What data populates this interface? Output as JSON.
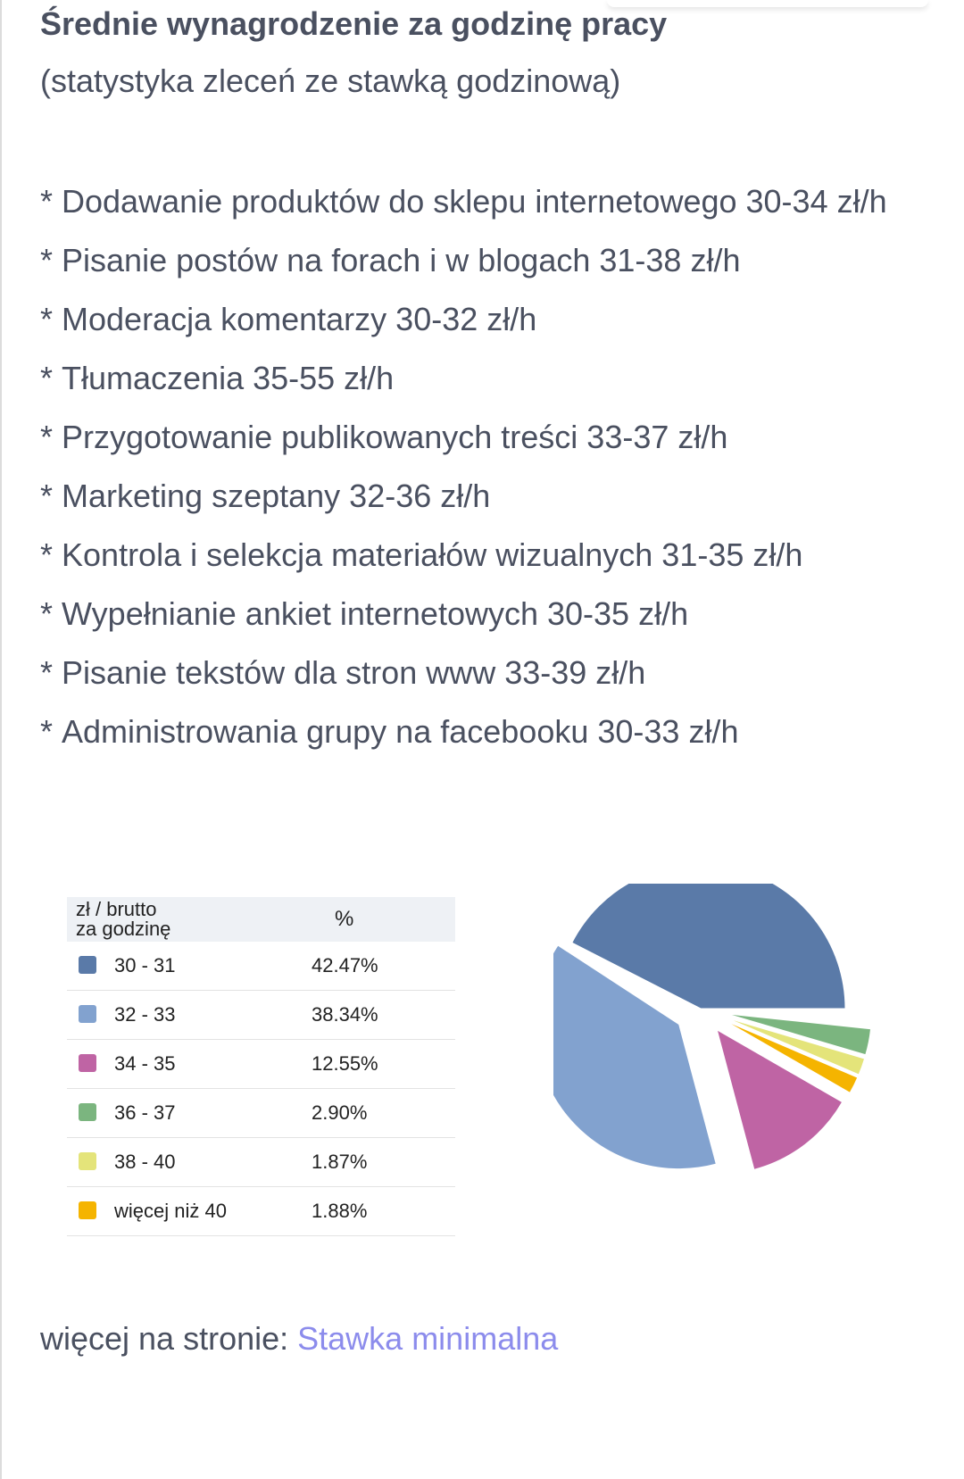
{
  "article": {
    "title": "Średnie wynagrodzenie za godzinę pracy",
    "subtitle": "(statystyka zleceń ze stawką godzinową)",
    "bullet": "*",
    "rates": [
      "Dodawanie produktów do sklepu internetowego 30-34 zł/h",
      "Pisanie postów na forach i w blogach 31-38 zł/h",
      "Moderacja komentarzy 30-32 zł/h",
      "Tłumaczenia 35-55 zł/h",
      "Przygotowanie publikowanych treści 33-37 zł/h",
      "Marketing szeptany 32-36 zł/h",
      "Kontrola i selekcja materiałów wizualnych 31-35 zł/h",
      "Wypełnianie ankiet internetowych 30-35 zł/h",
      "Pisanie tekstów dla stron www 33-39 zł/h",
      "Administrowania grupy na facebooku 30-33 zł/h"
    ],
    "more_prefix": "więcej na stronie: ",
    "more_link": "Stawka minimalna",
    "link_color": "#8c8cec"
  },
  "legend": {
    "col1_line1": "zł / brutto",
    "col1_line2": "za godzinę",
    "col2": "%",
    "rows": [
      {
        "range": "30 - 31",
        "pct": "42.47%",
        "color": "#5a7aa8"
      },
      {
        "range": "32 - 33",
        "pct": "38.34%",
        "color": "#82a2cf"
      },
      {
        "range": "34 - 35",
        "pct": "12.55%",
        "color": "#bf64a4"
      },
      {
        "range": "36 - 37",
        "pct": "2.90%",
        "color": "#7bb57f"
      },
      {
        "range": "38 - 40",
        "pct": "1.87%",
        "color": "#e4e47a"
      },
      {
        "range": "więcej niż 40",
        "pct": "1.88%",
        "color": "#f5b400"
      }
    ]
  },
  "chart_data": {
    "type": "pie",
    "categories": [
      "30 - 31",
      "32 - 33",
      "34 - 35",
      "36 - 37",
      "38 - 40",
      "więcej niż 40"
    ],
    "values": [
      42.47,
      38.34,
      12.55,
      2.9,
      1.87,
      1.88
    ],
    "colors": [
      "#5a7aa8",
      "#82a2cf",
      "#bf64a4",
      "#7bb57f",
      "#e4e47a",
      "#f5b400"
    ],
    "title": "",
    "legend": "left"
  }
}
